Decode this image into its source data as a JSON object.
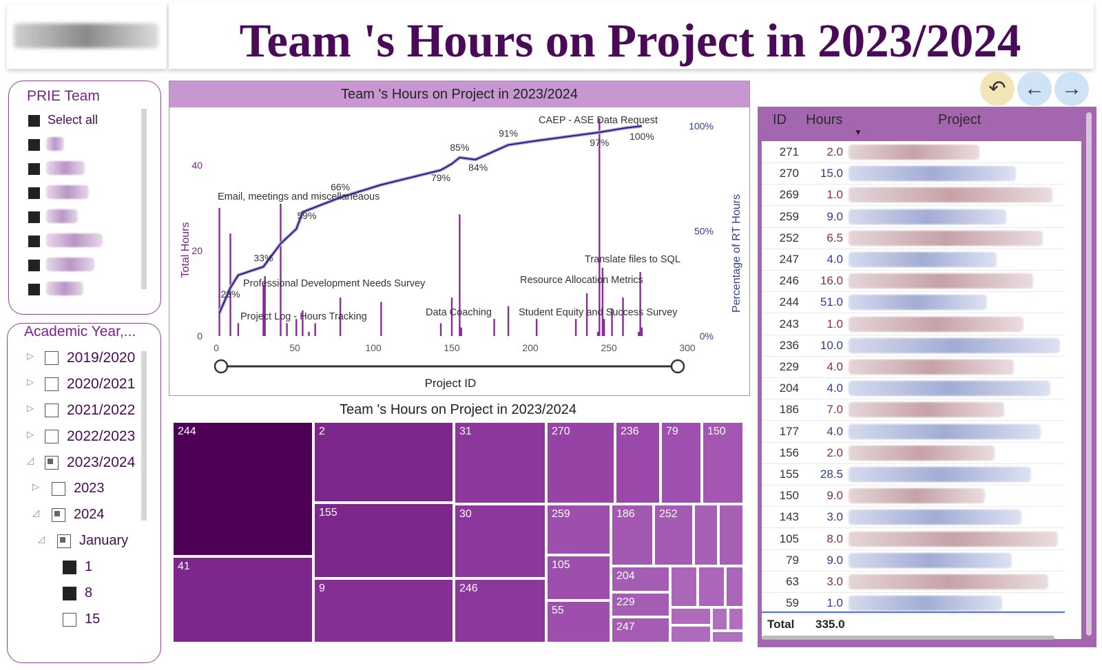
{
  "page": {
    "title": "Team 's Hours on Project in 2023/2024"
  },
  "team_slicer": {
    "title": "PRIE Team",
    "select_all": "Select all",
    "members": [
      {
        "checked": true
      },
      {
        "checked": true
      },
      {
        "checked": true
      },
      {
        "checked": true
      },
      {
        "checked": true
      },
      {
        "checked": true
      },
      {
        "checked": true
      }
    ]
  },
  "year_slicer": {
    "title": "Academic Year,...",
    "items": [
      {
        "label": "2019/2020",
        "state": "empty",
        "expand": "collapsed",
        "level": 0
      },
      {
        "label": "2020/2021",
        "state": "empty",
        "expand": "collapsed",
        "level": 0
      },
      {
        "label": "2021/2022",
        "state": "empty",
        "expand": "collapsed",
        "level": 0
      },
      {
        "label": "2022/2023",
        "state": "empty",
        "expand": "collapsed",
        "level": 0
      },
      {
        "label": "2023/2024",
        "state": "partial",
        "expand": "expanded",
        "level": 0
      },
      {
        "label": "2023",
        "state": "empty",
        "expand": "collapsed",
        "level": 1
      },
      {
        "label": "2024",
        "state": "partial",
        "expand": "expanded",
        "level": 1
      },
      {
        "label": "January",
        "state": "partial",
        "expand": "expanded",
        "level": 2
      },
      {
        "label": "1",
        "state": "checked",
        "expand": "none",
        "level": 3
      },
      {
        "label": "8",
        "state": "checked",
        "expand": "none",
        "level": 3
      },
      {
        "label": "15",
        "state": "empty",
        "expand": "none",
        "level": 3
      }
    ]
  },
  "nav": {
    "back_icon": "undo-icon",
    "prev_icon": "arrow-left-icon",
    "next_icon": "arrow-right-icon"
  },
  "chart_data": [
    {
      "type": "bar+line",
      "title": "Team 's Hours on Project in 2023/2024",
      "xlabel": "Project ID",
      "ylabel": "Total Hours",
      "y2label": "Percentage of RT Hours",
      "xlim": [
        0,
        300
      ],
      "ylim": [
        0,
        50
      ],
      "x_ticks": [
        "0",
        "50",
        "100",
        "150",
        "200",
        "250",
        "300"
      ],
      "y_ticks": [
        "0",
        "20",
        "40"
      ],
      "y2_ticks": [
        "0%",
        "50%",
        "100%"
      ],
      "bars": [
        {
          "x": 2,
          "y": 30
        },
        {
          "x": 9,
          "y": 24
        },
        {
          "x": 14,
          "y": 3
        },
        {
          "x": 30,
          "y": 12
        },
        {
          "x": 31,
          "y": 14
        },
        {
          "x": 41,
          "y": 31
        },
        {
          "x": 45,
          "y": 3
        },
        {
          "x": 51,
          "y": 4
        },
        {
          "x": 55,
          "y": 6
        },
        {
          "x": 59,
          "y": 1
        },
        {
          "x": 63,
          "y": 3
        },
        {
          "x": 79,
          "y": 9
        },
        {
          "x": 105,
          "y": 8
        },
        {
          "x": 143,
          "y": 3
        },
        {
          "x": 150,
          "y": 9
        },
        {
          "x": 155,
          "y": 28.5
        },
        {
          "x": 156,
          "y": 2
        },
        {
          "x": 177,
          "y": 4
        },
        {
          "x": 186,
          "y": 7
        },
        {
          "x": 204,
          "y": 4
        },
        {
          "x": 229,
          "y": 4
        },
        {
          "x": 236,
          "y": 10
        },
        {
          "x": 243,
          "y": 1
        },
        {
          "x": 244,
          "y": 51
        },
        {
          "x": 246,
          "y": 16
        },
        {
          "x": 247,
          "y": 4
        },
        {
          "x": 252,
          "y": 6.5
        },
        {
          "x": 259,
          "y": 9
        },
        {
          "x": 269,
          "y": 1
        },
        {
          "x": 270,
          "y": 15
        },
        {
          "x": 271,
          "y": 2
        }
      ],
      "cumulative_line": [
        {
          "x": 2,
          "y": 0.11
        },
        {
          "x": 9,
          "y": 0.23
        },
        {
          "x": 14,
          "y": 0.29
        },
        {
          "x": 30,
          "y": 0.33
        },
        {
          "x": 41,
          "y": 0.44
        },
        {
          "x": 51,
          "y": 0.51
        },
        {
          "x": 55,
          "y": 0.59
        },
        {
          "x": 79,
          "y": 0.66
        },
        {
          "x": 105,
          "y": 0.72
        },
        {
          "x": 143,
          "y": 0.79
        },
        {
          "x": 150,
          "y": 0.82
        },
        {
          "x": 155,
          "y": 0.85
        },
        {
          "x": 165,
          "y": 0.84
        },
        {
          "x": 186,
          "y": 0.91
        },
        {
          "x": 204,
          "y": 0.93
        },
        {
          "x": 244,
          "y": 0.97
        },
        {
          "x": 260,
          "y": 0.99
        },
        {
          "x": 271,
          "y": 1.0
        }
      ],
      "point_labels": [
        {
          "x": 9,
          "y": 0.23,
          "text": "23%"
        },
        {
          "x": 30,
          "y": 0.33,
          "text": "33%"
        },
        {
          "x": 55,
          "y": 0.59,
          "text": "59%"
        },
        {
          "x": 79,
          "y": 0.66,
          "text": "66%"
        },
        {
          "x": 143,
          "y": 0.79,
          "text": "79%"
        },
        {
          "x": 155,
          "y": 0.85,
          "text": "85%"
        },
        {
          "x": 165,
          "y": 0.84,
          "text": "84%"
        },
        {
          "x": 186,
          "y": 0.91,
          "text": "91%"
        },
        {
          "x": 244,
          "y": 0.97,
          "text": "97%"
        },
        {
          "x": 271,
          "y": 1.0,
          "text": "100%"
        }
      ],
      "annotations": [
        "Email, meetings and miscellaneaous",
        "Professional Development Needs Survey",
        "Project Log - Hours Tracking",
        "Data Coaching",
        "CAEP - ASE Data Request",
        "Translate files to SQL",
        "Resource Allocation Metrics",
        "Student Equity and Success Survey"
      ]
    },
    {
      "type": "treemap",
      "title": "Team 's Hours on Project in 2023/2024",
      "labels": [
        "244",
        "41",
        "2",
        "155",
        "9",
        "31",
        "30",
        "246",
        "270",
        "259",
        "105",
        "55",
        "236",
        "186",
        "204",
        "229",
        "247",
        "79",
        "252",
        "150"
      ]
    }
  ],
  "table": {
    "headers": {
      "id": "ID",
      "hours": "Hours",
      "project": "Project"
    },
    "rows": [
      {
        "id": "271",
        "hours": "2.0"
      },
      {
        "id": "270",
        "hours": "15.0"
      },
      {
        "id": "269",
        "hours": "1.0"
      },
      {
        "id": "259",
        "hours": "9.0"
      },
      {
        "id": "252",
        "hours": "6.5"
      },
      {
        "id": "247",
        "hours": "4.0"
      },
      {
        "id": "246",
        "hours": "16.0"
      },
      {
        "id": "244",
        "hours": "51.0"
      },
      {
        "id": "243",
        "hours": "1.0"
      },
      {
        "id": "236",
        "hours": "10.0"
      },
      {
        "id": "229",
        "hours": "4.0"
      },
      {
        "id": "204",
        "hours": "4.0"
      },
      {
        "id": "186",
        "hours": "7.0"
      },
      {
        "id": "177",
        "hours": "4.0"
      },
      {
        "id": "156",
        "hours": "2.0"
      },
      {
        "id": "155",
        "hours": "28.5"
      },
      {
        "id": "150",
        "hours": "9.0"
      },
      {
        "id": "143",
        "hours": "3.0"
      },
      {
        "id": "105",
        "hours": "8.0"
      },
      {
        "id": "79",
        "hours": "9.0"
      },
      {
        "id": "63",
        "hours": "3.0"
      },
      {
        "id": "59",
        "hours": "1.0"
      }
    ],
    "total_label": "Total",
    "total_value": "335.0"
  },
  "colors": {
    "title": "#4a0a57",
    "accent": "#7b1f8c",
    "bar": "#8a2a9a",
    "line": "#1a237e",
    "line_light": "#b9a9d6",
    "header_bg": "#c897d1",
    "table_bg": "#a566b0",
    "hours_red": "#8b2e3a",
    "hours_blue": "#2d3f8f"
  }
}
